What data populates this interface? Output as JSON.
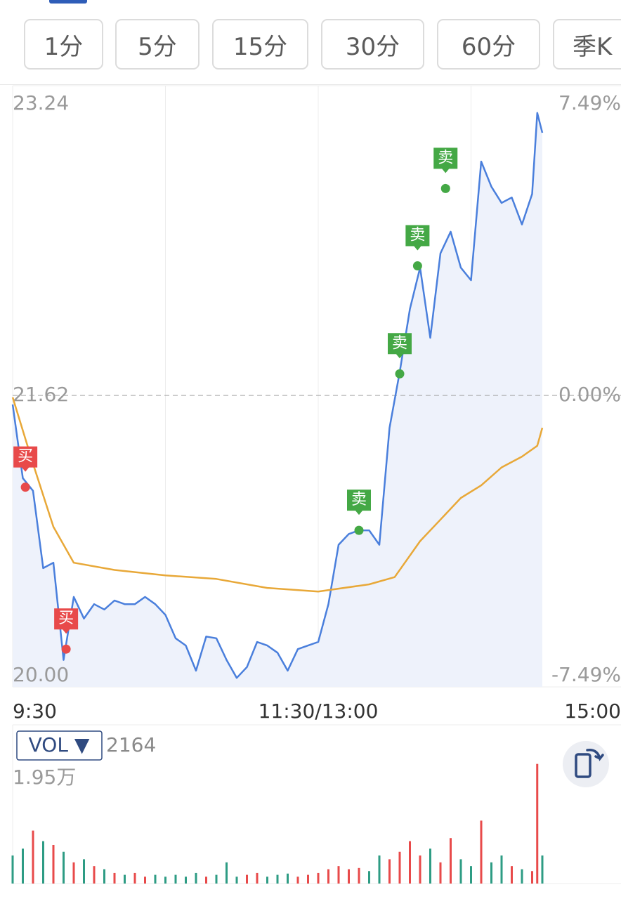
{
  "tabs": [
    "1分",
    "5分",
    "15分",
    "30分",
    "60分",
    "季K"
  ],
  "chart_data": [
    {
      "type": "line",
      "xlim": [
        0,
        240
      ],
      "xticks": [
        {
          "value": 0,
          "label": "9:30"
        },
        {
          "value": 120,
          "label": "11:30/13:00"
        },
        {
          "value": 240,
          "label": "15:00"
        }
      ],
      "xgrid": [
        60,
        120,
        180
      ],
      "ylim": [
        20.0,
        23.24
      ],
      "yticks": [
        {
          "value": 23.24,
          "label": "23.24"
        },
        {
          "value": 21.62,
          "label": "21.62"
        },
        {
          "value": 20.0,
          "label": "20.00"
        }
      ],
      "y2lim": [
        -7.49,
        7.49
      ],
      "y2ticks": [
        {
          "value": 7.49,
          "label": "7.49%"
        },
        {
          "value": 0,
          "label": "0.00%"
        },
        {
          "value": -7.49,
          "label": "-7.49%"
        }
      ],
      "series": [
        {
          "color": "#4a7fdc",
          "fill": "#eef2fb",
          "x": [
            0,
            4,
            8,
            12,
            16,
            20,
            24,
            28,
            32,
            36,
            40,
            44,
            48,
            52,
            56,
            60,
            64,
            68,
            72,
            76,
            80,
            84,
            88,
            92,
            96,
            100,
            104,
            108,
            112,
            116,
            120,
            124,
            128,
            132,
            136,
            140,
            144,
            148,
            152,
            156,
            160,
            164,
            168,
            172,
            176,
            180,
            184,
            188,
            192,
            196,
            200,
            204,
            206,
            208
          ],
          "values": [
            21.57,
            21.16,
            21.09,
            20.66,
            20.69,
            20.15,
            20.5,
            20.38,
            20.46,
            20.43,
            20.48,
            20.46,
            20.46,
            20.5,
            20.46,
            20.4,
            20.27,
            20.23,
            20.09,
            20.28,
            20.27,
            20.15,
            20.05,
            20.11,
            20.25,
            20.23,
            20.19,
            20.09,
            20.21,
            20.23,
            20.25,
            20.46,
            20.79,
            20.85,
            20.87,
            20.87,
            20.79,
            21.44,
            21.75,
            22.1,
            22.33,
            21.94,
            22.41,
            22.53,
            22.33,
            22.26,
            22.92,
            22.78,
            22.69,
            22.72,
            22.57,
            22.74,
            23.19,
            23.08
          ]
        },
        {
          "color": "#e8a838",
          "x": [
            0,
            8,
            16,
            24,
            40,
            60,
            80,
            100,
            120,
            140,
            150,
            160,
            168,
            176,
            184,
            192,
            200,
            206,
            208
          ],
          "values": [
            21.61,
            21.24,
            20.89,
            20.69,
            20.65,
            20.62,
            20.6,
            20.55,
            20.53,
            20.57,
            20.61,
            20.81,
            20.93,
            21.05,
            21.12,
            21.22,
            21.28,
            21.34,
            21.44
          ]
        }
      ],
      "markers": [
        {
          "label": "买",
          "x": 5,
          "y": 21.11,
          "color": "#e84a4a"
        },
        {
          "label": "买",
          "x": 21,
          "y": 20.21,
          "color": "#e84a4a"
        },
        {
          "label": "卖",
          "x": 136,
          "y": 20.87,
          "color": "#44a845"
        },
        {
          "label": "卖",
          "x": 152,
          "y": 21.74,
          "color": "#44a845"
        },
        {
          "label": "卖",
          "x": 159,
          "y": 22.34,
          "color": "#44a845"
        },
        {
          "label": "卖",
          "x": 170,
          "y": 22.77,
          "color": "#44a845"
        }
      ]
    },
    {
      "type": "bar",
      "indicator": "VOL ▼",
      "current": "2164",
      "xlim": [
        0,
        240
      ],
      "ylim": [
        0,
        19500
      ],
      "yticks": [
        {
          "value": 19500,
          "label": "1.95万"
        }
      ],
      "x": [
        0,
        4,
        8,
        12,
        16,
        20,
        24,
        28,
        32,
        36,
        40,
        44,
        48,
        52,
        56,
        60,
        64,
        68,
        72,
        76,
        80,
        84,
        88,
        92,
        96,
        100,
        104,
        108,
        112,
        116,
        120,
        124,
        128,
        132,
        136,
        140,
        144,
        148,
        152,
        156,
        160,
        164,
        168,
        172,
        176,
        180,
        184,
        188,
        192,
        196,
        200,
        204,
        206,
        208
      ],
      "values": [
        4500,
        5600,
        8500,
        6800,
        6200,
        5100,
        3400,
        3900,
        2800,
        2300,
        1700,
        1400,
        1700,
        1100,
        1400,
        1100,
        1400,
        1100,
        1700,
        1100,
        1400,
        3400,
        1100,
        1400,
        1700,
        1100,
        1400,
        1600,
        1100,
        1400,
        1700,
        2300,
        2800,
        2300,
        2500,
        2000,
        4500,
        3900,
        5100,
        6800,
        4500,
        5600,
        3400,
        7300,
        3900,
        2800,
        10100,
        3400,
        4500,
        2800,
        2300,
        2000,
        19200,
        4500
      ],
      "colors": [
        "#2e9c84",
        "#2e9c84",
        "#e84a4a",
        "#2e9c84",
        "#e84a4a",
        "#2e9c84",
        "#e84a4a",
        "#2e9c84",
        "#e84a4a",
        "#2e9c84",
        "#e84a4a",
        "#2e9c84",
        "#e84a4a",
        "#e84a4a",
        "#2e9c84",
        "#2e9c84",
        "#2e9c84",
        "#2e9c84",
        "#2e9c84",
        "#e84a4a",
        "#2e9c84",
        "#2e9c84",
        "#2e9c84",
        "#e84a4a",
        "#e84a4a",
        "#2e9c84",
        "#2e9c84",
        "#2e9c84",
        "#e84a4a",
        "#e84a4a",
        "#e84a4a",
        "#e84a4a",
        "#e84a4a",
        "#e84a4a",
        "#e84a4a",
        "#2e9c84",
        "#2e9c84",
        "#e84a4a",
        "#e84a4a",
        "#e84a4a",
        "#e84a4a",
        "#2e9c84",
        "#e84a4a",
        "#e84a4a",
        "#2e9c84",
        "#2e9c84",
        "#e84a4a",
        "#2e9c84",
        "#2e9c84",
        "#e84a4a",
        "#2e9c84",
        "#e84a4a",
        "#e84a4a",
        "#2e9c84"
      ]
    }
  ]
}
